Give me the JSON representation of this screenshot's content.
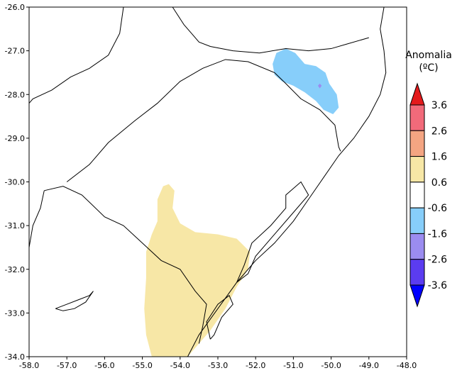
{
  "chart_data": {
    "type": "heatmap",
    "title": "",
    "xlabel": "",
    "ylabel": "",
    "xlim": [
      -58.0,
      -48.0
    ],
    "ylim": [
      -34.0,
      -26.0
    ],
    "x_ticks": [
      -58.0,
      -57.0,
      -56.0,
      -55.0,
      -54.0,
      -53.0,
      -52.0,
      -51.0,
      -50.0,
      -49.0,
      -48.0
    ],
    "y_ticks": [
      -26.0,
      -27.0,
      -28.0,
      -29.0,
      -30.0,
      -31.0,
      -32.0,
      -33.0,
      -34.0
    ],
    "x_tick_labels": [
      "-58.0",
      "-57.0",
      "-56.0",
      "-55.0",
      "-54.0",
      "-53.0",
      "-52.0",
      "-51.0",
      "-50.0",
      "-49.0",
      "-48.0"
    ],
    "y_tick_labels": [
      "-26.0",
      "-27.0",
      "-28.0",
      "-29.0",
      "-30.0",
      "-31.0",
      "-32.0",
      "-33.0",
      "-34.0"
    ],
    "grid": false,
    "legend": {
      "title_line1": "Anomalia",
      "title_line2": "(ºC)",
      "placement": "right",
      "labels": [
        "3.6",
        "2.6",
        "1.6",
        "0.6",
        "-0.6",
        "-1.6",
        "-2.6",
        "-3.6"
      ],
      "colors": [
        "#e41a1c",
        "#f26a7a",
        "#f4a582",
        "#f7e7a6",
        "#ffffff",
        "#87cefa",
        "#9b8cf0",
        "#5b3cf0",
        "#0000ff"
      ]
    },
    "regions": [
      {
        "name": "positive-anomaly-south",
        "class": "0.6 to 1.6",
        "color": "#f7e7a6",
        "polygon": [
          [
            -54.75,
            -34.0
          ],
          [
            -54.9,
            -33.5
          ],
          [
            -54.95,
            -32.9
          ],
          [
            -54.9,
            -32.2
          ],
          [
            -54.9,
            -31.6
          ],
          [
            -54.75,
            -31.2
          ],
          [
            -54.6,
            -30.9
          ],
          [
            -54.6,
            -30.4
          ],
          [
            -54.45,
            -30.1
          ],
          [
            -54.3,
            -30.05
          ],
          [
            -54.15,
            -30.2
          ],
          [
            -54.2,
            -30.6
          ],
          [
            -54.0,
            -30.95
          ],
          [
            -53.6,
            -31.15
          ],
          [
            -53.0,
            -31.2
          ],
          [
            -52.5,
            -31.3
          ],
          [
            -52.15,
            -31.6
          ],
          [
            -52.2,
            -32.0
          ],
          [
            -52.5,
            -32.4
          ],
          [
            -52.8,
            -32.9
          ],
          [
            -53.2,
            -33.4
          ],
          [
            -53.6,
            -33.8
          ],
          [
            -53.8,
            -34.0
          ]
        ]
      },
      {
        "name": "negative-anomaly-north",
        "class": "-1.6 to -0.6",
        "color": "#87cefa",
        "polygon": [
          [
            -51.55,
            -27.3
          ],
          [
            -51.45,
            -27.05
          ],
          [
            -51.2,
            -26.95
          ],
          [
            -50.95,
            -27.05
          ],
          [
            -50.7,
            -27.3
          ],
          [
            -50.4,
            -27.35
          ],
          [
            -50.15,
            -27.5
          ],
          [
            -50.05,
            -27.75
          ],
          [
            -49.85,
            -28.0
          ],
          [
            -49.8,
            -28.3
          ],
          [
            -49.95,
            -28.45
          ],
          [
            -50.2,
            -28.35
          ],
          [
            -50.4,
            -28.15
          ],
          [
            -50.7,
            -27.95
          ],
          [
            -51.0,
            -27.8
          ],
          [
            -51.3,
            -27.7
          ],
          [
            -51.5,
            -27.55
          ]
        ]
      },
      {
        "name": "negative-anomaly-core",
        "class": "-2.6 to -1.6",
        "color": "#9b8cf0",
        "polygon": [
          [
            -50.3,
            -27.75
          ],
          [
            -50.25,
            -27.8
          ],
          [
            -50.3,
            -27.86
          ],
          [
            -50.35,
            -27.8
          ]
        ]
      }
    ],
    "lines": [
      {
        "name": "state-border-north",
        "points": [
          [
            -54.2,
            -26.0
          ],
          [
            -53.9,
            -26.4
          ],
          [
            -53.7,
            -26.6
          ],
          [
            -53.5,
            -26.8
          ],
          [
            -53.2,
            -26.9
          ],
          [
            -52.6,
            -27.0
          ],
          [
            -51.9,
            -27.05
          ],
          [
            -51.2,
            -26.95
          ],
          [
            -50.6,
            -27.0
          ],
          [
            -50.0,
            -26.95
          ],
          [
            -49.6,
            -26.85
          ],
          [
            -49.0,
            -26.7
          ]
        ]
      },
      {
        "name": "argentina-border",
        "points": [
          [
            -55.5,
            -26.0
          ],
          [
            -55.6,
            -26.6
          ],
          [
            -55.9,
            -27.1
          ],
          [
            -56.4,
            -27.4
          ],
          [
            -56.9,
            -27.6
          ],
          [
            -57.4,
            -27.9
          ],
          [
            -57.9,
            -28.1
          ],
          [
            -58.0,
            -28.2
          ]
        ]
      },
      {
        "name": "coast",
        "points": [
          [
            -48.6,
            -26.0
          ],
          [
            -48.7,
            -26.5
          ],
          [
            -48.6,
            -27.0
          ],
          [
            -48.55,
            -27.5
          ],
          [
            -48.7,
            -28.0
          ],
          [
            -49.0,
            -28.5
          ],
          [
            -49.4,
            -29.0
          ],
          [
            -49.8,
            -29.4
          ],
          [
            -50.2,
            -29.9
          ],
          [
            -50.6,
            -30.4
          ],
          [
            -51.0,
            -30.9
          ],
          [
            -51.5,
            -31.4
          ],
          [
            -52.0,
            -31.8
          ],
          [
            -52.5,
            -32.3
          ],
          [
            -53.0,
            -32.9
          ],
          [
            -53.5,
            -33.5
          ],
          [
            -53.8,
            -34.0
          ]
        ]
      },
      {
        "name": "rs-north-border",
        "points": [
          [
            -57.0,
            -30.0
          ],
          [
            -56.4,
            -29.6
          ],
          [
            -55.9,
            -29.1
          ],
          [
            -55.2,
            -28.6
          ],
          [
            -54.6,
            -28.2
          ],
          [
            -54.0,
            -27.7
          ],
          [
            -53.4,
            -27.4
          ],
          [
            -52.8,
            -27.2
          ],
          [
            -52.2,
            -27.25
          ],
          [
            -51.5,
            -27.5
          ],
          [
            -51.2,
            -27.75
          ],
          [
            -50.8,
            -28.1
          ],
          [
            -50.3,
            -28.35
          ],
          [
            -49.9,
            -28.7
          ],
          [
            -49.8,
            -29.2
          ],
          [
            -49.75,
            -29.3
          ]
        ]
      },
      {
        "name": "uruguay-border",
        "points": [
          [
            -57.6,
            -30.2
          ],
          [
            -57.1,
            -30.1
          ],
          [
            -56.6,
            -30.3
          ],
          [
            -56.0,
            -30.8
          ],
          [
            -55.5,
            -31.0
          ],
          [
            -55.0,
            -31.4
          ],
          [
            -54.5,
            -31.8
          ],
          [
            -54.0,
            -32.0
          ],
          [
            -53.6,
            -32.5
          ],
          [
            -53.3,
            -32.8
          ],
          [
            -53.4,
            -33.3
          ],
          [
            -53.5,
            -33.7
          ]
        ]
      },
      {
        "name": "uruguay-west",
        "points": [
          [
            -58.0,
            -31.5
          ],
          [
            -57.9,
            -31.0
          ],
          [
            -57.7,
            -30.6
          ],
          [
            -57.6,
            -30.2
          ]
        ]
      },
      {
        "name": "lagoon",
        "points": [
          [
            -52.5,
            -32.3
          ],
          [
            -52.3,
            -31.9
          ],
          [
            -52.1,
            -31.4
          ],
          [
            -51.6,
            -31.0
          ],
          [
            -51.2,
            -30.6
          ],
          [
            -51.2,
            -30.3
          ],
          [
            -50.8,
            -30.0
          ],
          [
            -50.6,
            -30.3
          ],
          [
            -51.0,
            -30.7
          ],
          [
            -51.5,
            -31.2
          ],
          [
            -52.0,
            -31.7
          ],
          [
            -52.2,
            -32.1
          ],
          [
            -52.5,
            -32.3
          ]
        ]
      },
      {
        "name": "mirim-lagoon",
        "points": [
          [
            -53.2,
            -33.6
          ],
          [
            -53.3,
            -33.2
          ],
          [
            -53.0,
            -32.8
          ],
          [
            -52.7,
            -32.6
          ],
          [
            -52.6,
            -32.8
          ],
          [
            -52.9,
            -33.1
          ],
          [
            -53.1,
            -33.5
          ],
          [
            -53.2,
            -33.6
          ]
        ]
      },
      {
        "name": "rio-de-la-plata-island",
        "points": [
          [
            -57.3,
            -32.9
          ],
          [
            -57.0,
            -32.8
          ],
          [
            -56.7,
            -32.7
          ],
          [
            -56.4,
            -32.6
          ],
          [
            -56.3,
            -32.5
          ],
          [
            -56.5,
            -32.75
          ],
          [
            -56.8,
            -32.9
          ],
          [
            -57.1,
            -32.95
          ],
          [
            -57.3,
            -32.9
          ]
        ]
      }
    ]
  }
}
